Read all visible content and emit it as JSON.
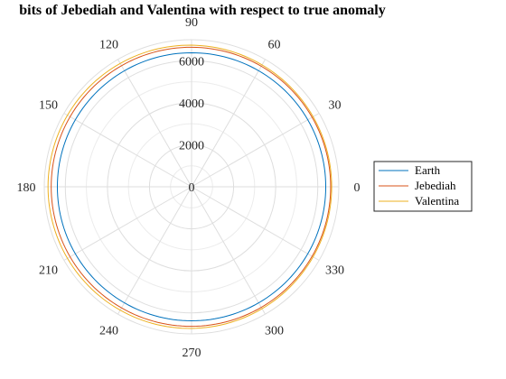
{
  "chart_data": {
    "type": "polar-line",
    "title": "bits of Jebediah and Valentina with respect to true anomaly",
    "rlim": [
      0,
      7000
    ],
    "radial_ticks": [
      0,
      2000,
      4000,
      6000
    ],
    "radial_tick_labels": [
      "0",
      "2000",
      "4000",
      "6000"
    ],
    "angle_ticks": [
      0,
      30,
      60,
      90,
      120,
      150,
      180,
      210,
      240,
      270,
      300,
      330
    ],
    "angle_tick_labels": [
      "0",
      "30",
      "60",
      "90",
      "120",
      "150",
      "180",
      "210",
      "240",
      "270",
      "300",
      "330"
    ],
    "grid": true,
    "legend_position": "east-outside",
    "series": [
      {
        "name": "Earth",
        "color": "#0072BD",
        "r_formula": "constant",
        "a": 6378,
        "e": 0
      },
      {
        "name": "Jebediah",
        "color": "#D95319",
        "r_formula": "conic",
        "a": 6641,
        "e": 0.0045
      },
      {
        "name": "Valentina",
        "color": "#EDB120",
        "r_formula": "conic",
        "a": 6741,
        "e": 0.012
      }
    ]
  }
}
